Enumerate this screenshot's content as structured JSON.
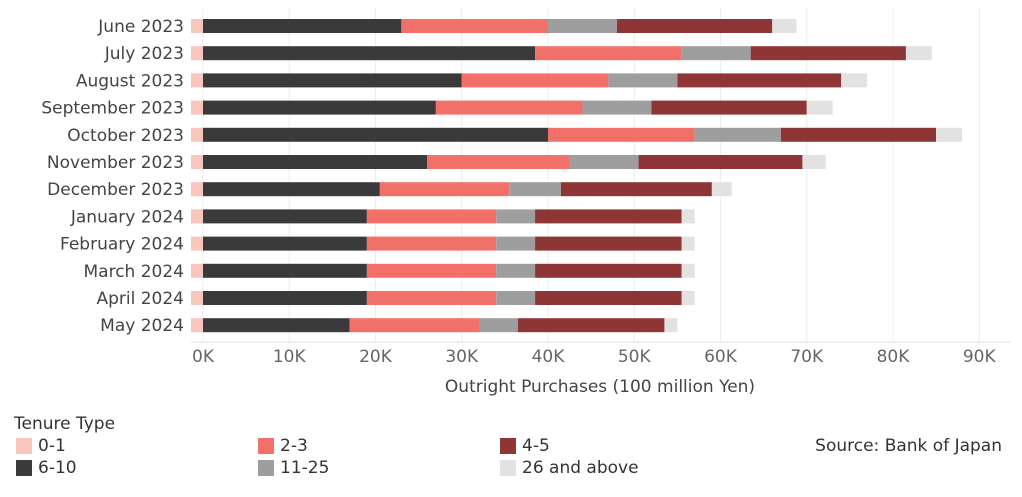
{
  "chart_data": {
    "type": "bar",
    "orientation": "horizontal",
    "stacked": true,
    "categories": [
      "June 2023",
      "July 2023",
      "August 2023",
      "September 2023",
      "October 2023",
      "November 2023",
      "December 2023",
      "January 2024",
      "February 2024",
      "March 2024",
      "April 2024",
      "May 2024"
    ],
    "series": [
      {
        "name": "0-1",
        "color": "#f9c6bd",
        "values": [
          1500,
          1500,
          1500,
          1500,
          1500,
          1500,
          1500,
          1500,
          1500,
          1500,
          1500,
          1500
        ]
      },
      {
        "name": "6-10",
        "color": "#3a3a3a",
        "values": [
          23000,
          38500,
          30000,
          27000,
          40000,
          26000,
          20500,
          19000,
          19000,
          19000,
          19000,
          17000
        ]
      },
      {
        "name": "2-3",
        "color": "#f2706a",
        "values": [
          17000,
          17000,
          17000,
          17000,
          17000,
          16500,
          15000,
          15000,
          15000,
          15000,
          15000,
          15000
        ]
      },
      {
        "name": "11-25",
        "color": "#9e9e9e",
        "values": [
          8000,
          8000,
          8000,
          8000,
          10000,
          8000,
          6000,
          4500,
          4500,
          4500,
          4500,
          4500
        ]
      },
      {
        "name": "4-5",
        "color": "#8e3636",
        "values": [
          18000,
          18000,
          19000,
          18000,
          18000,
          19000,
          17500,
          17000,
          17000,
          17000,
          17000,
          17000
        ]
      },
      {
        "name": "26 and above",
        "color": "#e2e2e2",
        "values": [
          2800,
          3000,
          3000,
          3000,
          3000,
          2700,
          2300,
          1500,
          1500,
          1500,
          1500,
          1500
        ]
      }
    ],
    "xlabel": "Outright Purchases (100 million Yen)",
    "xlim": [
      0,
      90000
    ],
    "xticks": [
      0,
      10000,
      20000,
      30000,
      40000,
      50000,
      60000,
      70000,
      80000,
      90000
    ],
    "xtick_labels": [
      "0K",
      "10K",
      "20K",
      "30K",
      "40K",
      "50K",
      "60K",
      "70K",
      "80K",
      "90K"
    ],
    "grid": "vertical",
    "legend_title": "Tenure Type",
    "legend_position": "bottom"
  },
  "source": "Source: Bank of Japan"
}
